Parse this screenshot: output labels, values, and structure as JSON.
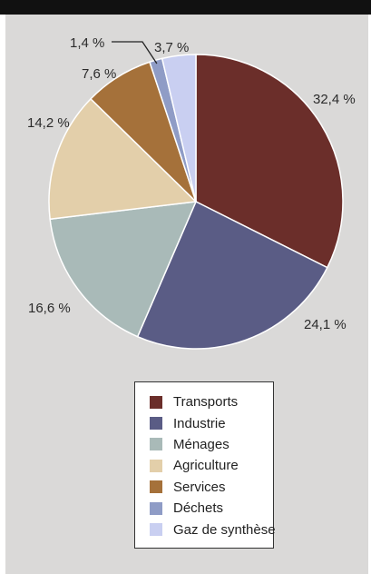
{
  "chart_data": {
    "type": "pie",
    "title": "",
    "slices": [
      {
        "label": "Transports",
        "value": 32.4,
        "display": "32,4 %",
        "color": "#6b2e2a"
      },
      {
        "label": "Industrie",
        "value": 24.1,
        "display": "24,1 %",
        "color": "#5a5c85"
      },
      {
        "label": "Ménages",
        "value": 16.6,
        "display": "16,6 %",
        "color": "#a9bab8"
      },
      {
        "label": "Agriculture",
        "value": 14.2,
        "display": "14,2 %",
        "color": "#e3cfaa"
      },
      {
        "label": "Services",
        "value": 7.6,
        "display": "7,6 %",
        "color": "#a5713a"
      },
      {
        "label": "Déchets",
        "value": 1.4,
        "display": "1,4 %",
        "color": "#8f9cc6"
      },
      {
        "label": "Gaz de synthèse",
        "value": 3.7,
        "display": "3,7 %",
        "color": "#c9cff1"
      }
    ],
    "legend_position": "bottom-center"
  }
}
